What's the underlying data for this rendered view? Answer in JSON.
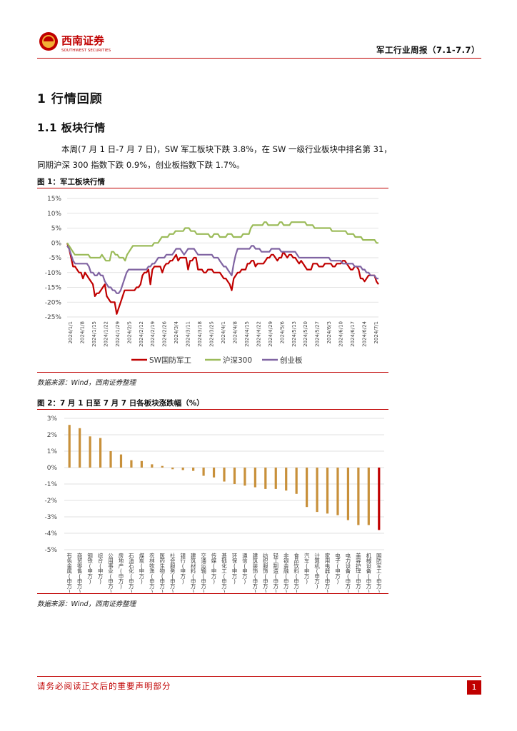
{
  "header": {
    "logo_name": "西南证券",
    "logo_sub": "SOUTHWEST SECURITIES",
    "report_title": "军工行业周报（7.1-7.7）"
  },
  "section": {
    "title": "1 行情回顾"
  },
  "subsection": {
    "title": "1.1 板块行情"
  },
  "paragraph": {
    "line1": "本周(7 月 1 日-7 月 7 日)，SW 军工板块下跌 3.8%，在 SW 一级行业板块中排名第 31，",
    "line2": "同期沪深 300 指数下跌 0.9%，创业板指数下跌 1.7%。"
  },
  "figure1": {
    "title": "图 1：军工板块行情",
    "source": "数据来源：Wind，西南证券整理"
  },
  "figure2": {
    "title": "图 2：7 月 1 日至 7 月 7 日各板块涨跌幅（%）",
    "source": "数据来源：Wind，西南证券整理"
  },
  "footer": {
    "disclaimer": "请务必阅读正文后的重要声明部分",
    "page": "1"
  },
  "colors": {
    "accent": "#c00000",
    "red": "#c00000",
    "green": "#9bbb59",
    "purple": "#8064a2",
    "bar": "#c8903a"
  },
  "chart_data": [
    {
      "type": "line",
      "ylim": [
        -25,
        15
      ],
      "yticks": [
        "15%",
        "10%",
        "5%",
        "0%",
        "-5%",
        "-10%",
        "-15%",
        "-20%",
        "-25%"
      ],
      "ytick_values": [
        15,
        10,
        5,
        0,
        -5,
        -10,
        -15,
        -20,
        -25
      ],
      "xticks": [
        "2024/1/1",
        "2024/1/8",
        "2024/1/15",
        "2024/1/22",
        "2024/1/29",
        "2024/2/5",
        "2024/2/12",
        "2024/2/19",
        "2024/2/26",
        "2024/3/4",
        "2024/3/11",
        "2024/3/18",
        "2024/3/25",
        "2024/4/1",
        "2024/4/8",
        "2024/4/15",
        "2024/4/22",
        "2024/4/29",
        "2024/5/6",
        "2024/5/13",
        "2024/5/20",
        "2024/5/27",
        "2024/6/3",
        "2024/6/10",
        "2024/6/17",
        "2024/6/24",
        "2024/7/1"
      ],
      "series": [
        {
          "name": "SW国防军工",
          "color": "#c00000",
          "values": [
            0,
            -2,
            -5,
            -8,
            -8,
            -9,
            -10,
            -10,
            -12,
            -10,
            -11,
            -12,
            -13,
            -14,
            -18,
            -17,
            -17,
            -16,
            -15,
            -14,
            -18,
            -19,
            -20,
            -20,
            -20,
            -24,
            -22,
            -20,
            -18,
            -16,
            -16,
            -16,
            -16,
            -16,
            -16,
            -15,
            -15,
            -14,
            -11,
            -10,
            -10,
            -9,
            -14,
            -9,
            -8,
            -8,
            -8,
            -8,
            -10,
            -8,
            -7,
            -7,
            -6,
            -6,
            -5,
            -4,
            -6,
            -5,
            -5,
            -5,
            -5,
            -9,
            -6,
            -6,
            -5,
            -5,
            -9,
            -9,
            -9,
            -10,
            -10,
            -9,
            -9,
            -9,
            -10,
            -10,
            -10,
            -10,
            -11,
            -12,
            -12,
            -13,
            -14,
            -16,
            -12,
            -11,
            -10,
            -10,
            -9,
            -9,
            -9,
            -7,
            -7,
            -6,
            -6,
            -8,
            -7,
            -7,
            -7,
            -7,
            -6,
            -5,
            -5,
            -4,
            -4,
            -5,
            -6,
            -5,
            -5,
            -3,
            -4,
            -5,
            -4,
            -4,
            -5,
            -5,
            -6,
            -7,
            -6,
            -7,
            -8,
            -9,
            -9,
            -9,
            -7,
            -7,
            -7,
            -8,
            -8,
            -8,
            -7,
            -7,
            -7,
            -7,
            -8,
            -8,
            -7,
            -7,
            -7,
            -6,
            -6,
            -7,
            -8,
            -9,
            -9,
            -8,
            -8,
            -9,
            -12,
            -12,
            -13,
            -12,
            -11,
            -11,
            -11,
            -11,
            -13,
            -14
          ]
        },
        {
          "name": "沪深300",
          "color": "#9bbb59",
          "values": [
            0,
            -1,
            -2,
            -3,
            -4,
            -4,
            -4,
            -4,
            -4,
            -4,
            -4,
            -4,
            -5,
            -5,
            -5,
            -5,
            -5,
            -5,
            -4,
            -5,
            -6,
            -6,
            -6,
            -3,
            -3,
            -4,
            -4,
            -5,
            -5,
            -5,
            -6,
            -4,
            -3,
            -2,
            -1,
            -1,
            -1,
            -1,
            -1,
            -1,
            -1,
            -1,
            -1,
            -1,
            -1,
            0,
            0,
            0,
            1,
            2,
            2,
            2,
            2,
            3,
            3,
            3,
            4,
            4,
            4,
            4,
            4,
            5,
            5,
            5,
            4,
            4,
            4,
            3,
            3,
            3,
            3,
            3,
            3,
            3,
            2,
            2,
            3,
            3,
            3,
            2,
            2,
            2,
            2,
            3,
            3,
            3,
            2,
            2,
            2,
            2,
            2,
            3,
            3,
            3,
            3,
            5,
            6,
            6,
            6,
            6,
            6,
            6,
            7,
            7,
            6,
            6,
            6,
            6,
            6,
            6,
            7,
            7,
            6,
            6,
            6,
            6,
            7,
            7,
            7,
            7,
            7,
            7,
            7,
            7,
            6,
            6,
            6,
            6,
            5,
            5,
            5,
            5,
            5,
            5,
            5,
            5,
            5,
            4,
            4,
            4,
            4,
            4,
            4,
            4,
            4,
            3,
            3,
            3,
            3,
            2,
            2,
            2,
            2,
            1,
            1,
            1,
            1,
            1,
            1,
            1,
            0,
            0
          ]
        },
        {
          "name": "创业板",
          "color": "#8064a2",
          "values": [
            -1,
            -2,
            -4,
            -6,
            -7,
            -7,
            -7,
            -7,
            -7,
            -7,
            -7,
            -8,
            -10,
            -10,
            -11,
            -11,
            -10,
            -11,
            -11,
            -13,
            -14,
            -15,
            -15,
            -16,
            -16,
            -17,
            -17,
            -16,
            -14,
            -12,
            -10,
            -9,
            -9,
            -9,
            -9,
            -9,
            -9,
            -9,
            -9,
            -9,
            -9,
            -8,
            -8,
            -7,
            -7,
            -6,
            -5,
            -5,
            -5,
            -5,
            -4,
            -4,
            -4,
            -4,
            -3,
            -2,
            -2,
            -2,
            -3,
            -4,
            -3,
            -2,
            -2,
            -2,
            -2,
            -3,
            -4,
            -4,
            -4,
            -4,
            -4,
            -4,
            -4,
            -4,
            -5,
            -5,
            -5,
            -6,
            -7,
            -8,
            -8,
            -9,
            -10,
            -11,
            -7,
            -4,
            -2,
            -2,
            -2,
            -2,
            -2,
            -2,
            -2,
            -1,
            -1,
            -2,
            -2,
            -2,
            -3,
            -3,
            -3,
            -3,
            -3,
            -2,
            -2,
            -2,
            -2,
            -2,
            -3,
            -3,
            -3,
            -3,
            -3,
            -3,
            -3,
            -3,
            -4,
            -5,
            -5,
            -5,
            -5,
            -5,
            -5,
            -5,
            -5,
            -5,
            -5,
            -5,
            -5,
            -5,
            -5,
            -5,
            -5,
            -6,
            -6,
            -6,
            -6,
            -6,
            -6,
            -7,
            -7,
            -7,
            -7,
            -7,
            -7,
            -8,
            -8,
            -8,
            -8,
            -9,
            -9,
            -10,
            -10,
            -11,
            -11,
            -11,
            -12,
            -12
          ]
        }
      ]
    },
    {
      "type": "bar",
      "ylim": [
        -5,
        3
      ],
      "yticks": [
        "3%",
        "2%",
        "1%",
        "0%",
        "-1%",
        "-2%",
        "-3%",
        "-4%",
        "-5%"
      ],
      "ytick_values": [
        3,
        2,
        1,
        0,
        -1,
        -2,
        -3,
        -4,
        -5
      ],
      "categories": [
        "有色金属(申万)",
        "商贸零售(申万)",
        "钢铁(申万)",
        "综合(申万)",
        "公用事业(申万)",
        "房地产(申万)",
        "石油石化(申万)",
        "煤炭(申万)",
        "农林牧渔(申万)",
        "医药生物(申万)",
        "社会服务(申万)",
        "银行(申万)",
        "建筑材料(申万)",
        "交通运输(申万)",
        "传媒(申万)",
        "基础化工(申万)",
        "环保(申万)",
        "通信(申万)",
        "建筑装饰(申万)",
        "纺织服饰(申万)",
        "轻工制造(申万)",
        "非银金融(申万)",
        "食品饮料(申万)",
        "汽车(申万)",
        "计算机(申万)",
        "家用电器(申万)",
        "电子(申万)",
        "电力设备(申万)",
        "美容护理(申万)",
        "机械设备(申万)",
        "国防军工(申万)"
      ],
      "values": [
        2.6,
        2.4,
        1.9,
        1.8,
        1.0,
        0.8,
        0.45,
        0.4,
        0.2,
        0.1,
        -0.1,
        -0.15,
        -0.2,
        -0.5,
        -0.6,
        -0.85,
        -1.0,
        -1.1,
        -1.2,
        -1.3,
        -1.3,
        -1.4,
        -1.6,
        -2.4,
        -2.7,
        -2.8,
        -2.9,
        -3.2,
        -3.5,
        -3.5,
        -3.8
      ]
    }
  ]
}
